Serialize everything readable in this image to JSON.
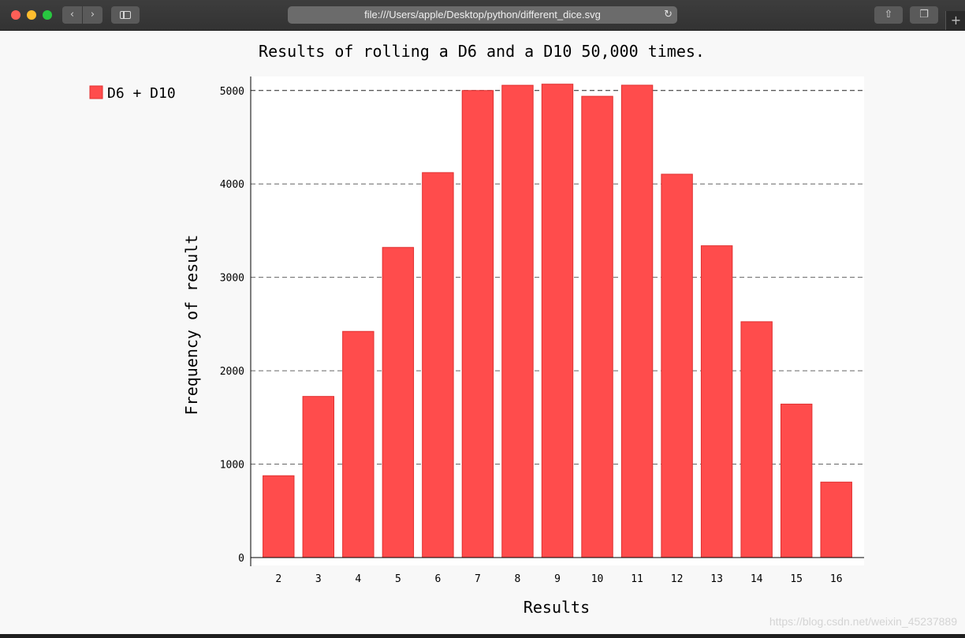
{
  "browser": {
    "url": "file:///Users/apple/Desktop/python/different_dice.svg",
    "back_icon": "chevron-left-icon",
    "forward_icon": "chevron-right-icon",
    "sidebar_icon": "sidebar-icon",
    "reload_icon": "reload-icon",
    "share_icon": "share-icon",
    "tabs_icon": "tabs-icon",
    "newtab_icon": "plus-icon",
    "newtab_label": "+"
  },
  "chart_data": {
    "type": "bar",
    "title": "Results of rolling a D6 and a D10 50,000 times.",
    "xlabel": "Results",
    "ylabel": "Frequency of result",
    "categories": [
      "2",
      "3",
      "4",
      "5",
      "6",
      "7",
      "8",
      "9",
      "10",
      "11",
      "12",
      "13",
      "14",
      "15",
      "16"
    ],
    "series": [
      {
        "name": "D6 + D10",
        "values": [
          876,
          1725,
          2421,
          3320,
          4121,
          5000,
          5056,
          5068,
          4938,
          5057,
          4104,
          3338,
          2525,
          1643,
          808
        ],
        "color": "#ff4c4c"
      }
    ],
    "yticks": [
      "0",
      "1000",
      "2000",
      "3000",
      "4000",
      "5000"
    ],
    "ylim": [
      0,
      5150
    ],
    "grid": "horizontal-dashed",
    "legend": "top-left",
    "colors": {
      "bar_fill": "#ff4c4c",
      "bar_stroke": "#e03030",
      "background": "#f8f8f8",
      "plot_background": "#ffffff"
    }
  },
  "watermark": "https://blog.csdn.net/weixin_45237889"
}
